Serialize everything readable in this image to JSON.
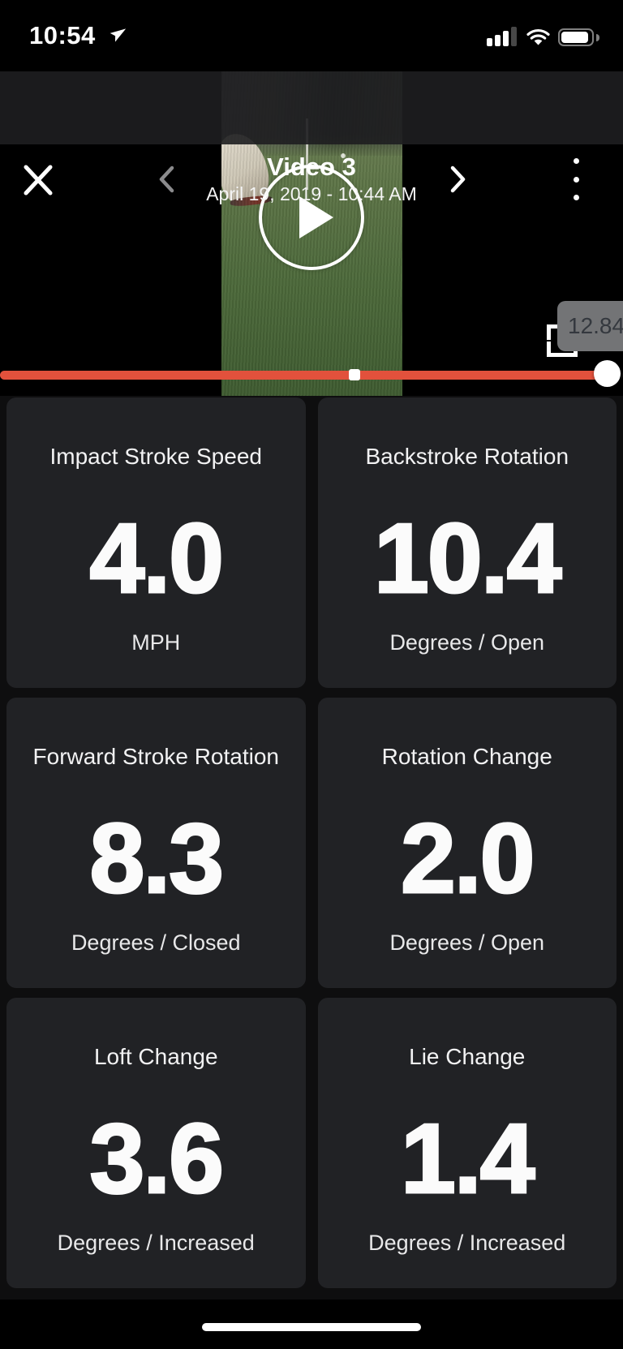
{
  "status_bar": {
    "time": "10:54"
  },
  "nav": {
    "title": "Video 3",
    "subtitle": "April 19, 2019 - 10:44 AM"
  },
  "player": {
    "time_tooltip": "12.84",
    "progress_percent": 97.5,
    "impact_marker_percent": 56.9,
    "state": "paused"
  },
  "metrics": [
    {
      "title": "Impact Stroke Speed",
      "value": "4.0",
      "unit": "MPH"
    },
    {
      "title": "Backstroke Rotation",
      "value": "10.4",
      "unit": "Degrees / Open"
    },
    {
      "title": "Forward Stroke Rotation",
      "value": "8.3",
      "unit": "Degrees / Closed"
    },
    {
      "title": "Rotation Change",
      "value": "2.0",
      "unit": "Degrees / Open"
    },
    {
      "title": "Loft Change",
      "value": "3.6",
      "unit": "Degrees / Increased"
    },
    {
      "title": "Lie Change",
      "value": "1.4",
      "unit": "Degrees / Increased"
    }
  ],
  "colors": {
    "accent_red": "#E2513C",
    "card_bg": "#212225",
    "nav_bg": "#1E1E20",
    "section_bg": "#0E0E0F"
  }
}
